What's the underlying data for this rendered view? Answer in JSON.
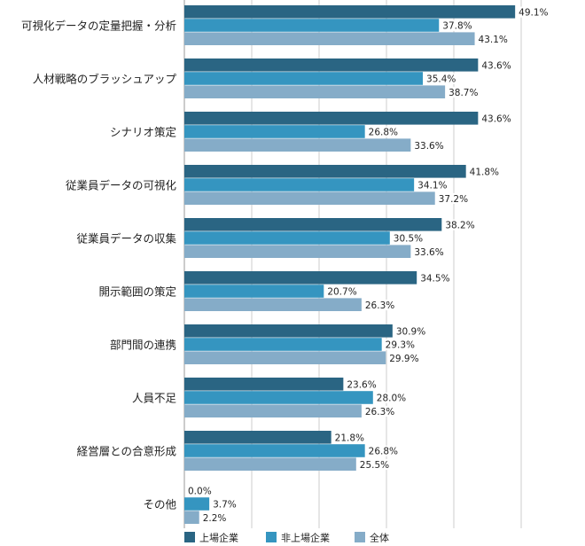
{
  "chart_data": {
    "type": "bar",
    "orientation": "horizontal",
    "unit": "%",
    "categories": [
      "可視化データの定量把握・分析",
      "人材戦略のブラッシュアップ",
      "シナリオ策定",
      "従業員データの可視化",
      "従業員データの収集",
      "開示範囲の策定",
      "部門間の連携",
      "人員不足",
      "経営層との合意形成",
      "その他"
    ],
    "series": [
      {
        "name": "上場企業",
        "color": "#2a6583",
        "values": [
          49.1,
          43.6,
          43.6,
          41.8,
          38.2,
          34.5,
          30.9,
          23.6,
          21.8,
          0.0
        ]
      },
      {
        "name": "非上場企業",
        "color": "#3595c0",
        "values": [
          37.8,
          35.4,
          26.8,
          34.1,
          30.5,
          20.7,
          29.3,
          28.0,
          26.8,
          3.7
        ]
      },
      {
        "name": "全体",
        "color": "#85acc8",
        "values": [
          43.1,
          38.7,
          33.6,
          37.2,
          33.6,
          26.3,
          29.9,
          26.3,
          25.5,
          2.2
        ]
      }
    ],
    "xlim": [
      0,
      60
    ],
    "grid": true,
    "legend_position": "bottom-left"
  }
}
